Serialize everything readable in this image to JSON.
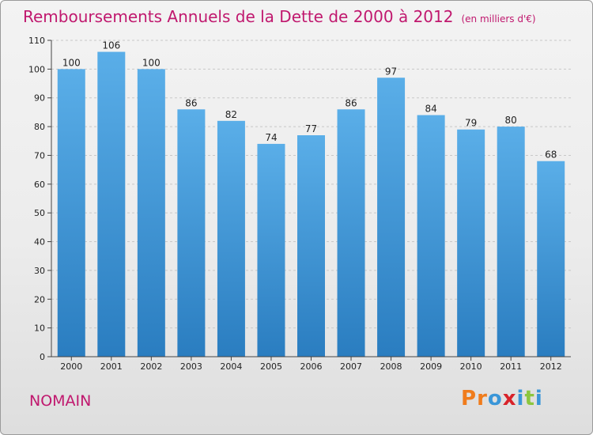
{
  "chart_data": {
    "type": "bar",
    "title": "Remboursements Annuels de la Dette de 2000 à 2012",
    "unit": "(en milliers d'€)",
    "categories": [
      "2000",
      "2001",
      "2002",
      "2003",
      "2004",
      "2005",
      "2006",
      "2007",
      "2008",
      "2009",
      "2010",
      "2011",
      "2012"
    ],
    "values": [
      100,
      106,
      100,
      86,
      82,
      74,
      77,
      86,
      97,
      84,
      79,
      80,
      68
    ],
    "xlabel": "",
    "ylabel": "",
    "ylim": [
      0,
      110
    ],
    "yticks": [
      0,
      10,
      20,
      30,
      40,
      50,
      60,
      70,
      80,
      90,
      100,
      110
    ],
    "grid": true,
    "legend": "none"
  },
  "place": "NOMAIN",
  "brand": {
    "letters": [
      "P",
      "r",
      "o",
      "x",
      "i",
      "t",
      "i"
    ]
  },
  "colors": {
    "bar_top": "#5aaee8",
    "bar_bottom": "#2a7dc0",
    "title": "#c0186e",
    "grid": "#c8c8c8",
    "logo": [
      "#f07c1c",
      "#f07c1c",
      "#3a96d8",
      "#d8232a",
      "#3a96d8",
      "#8cc63f",
      "#3a96d8"
    ]
  }
}
